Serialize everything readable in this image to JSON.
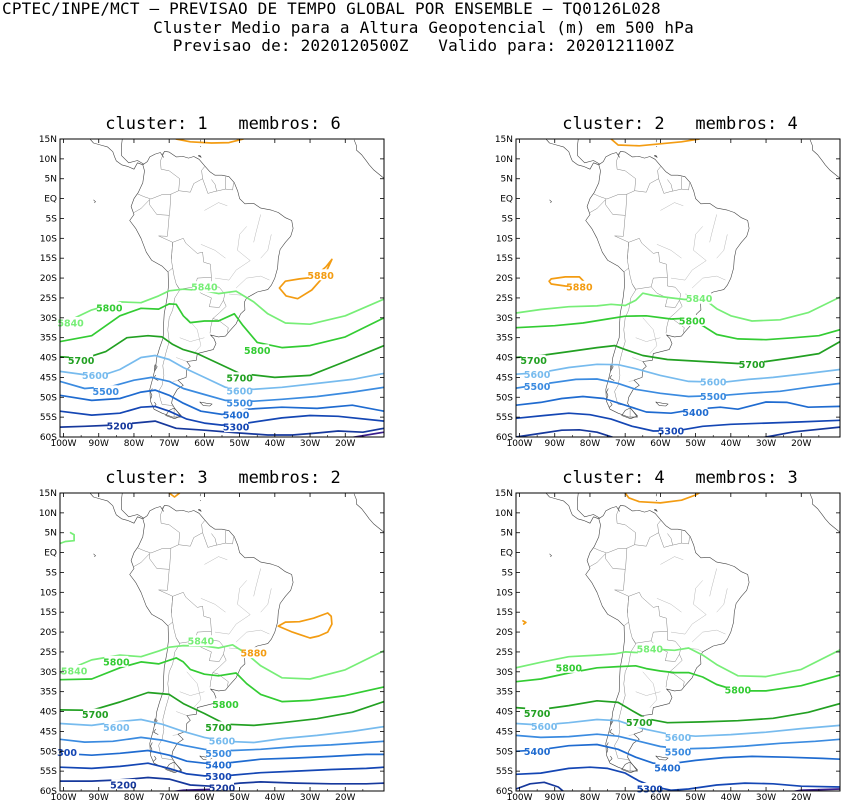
{
  "header": {
    "line1": "CPTEC/INPE/MCT – PREVISAO DE TEMPO GLOBAL POR ENSEMBLE – TQ0126L028",
    "line2": "Cluster Medio para a Altura Geopotencial (m) em 500 hPa",
    "line3": "Previsao de: 2020120500Z   Valido para: 2020121100Z"
  },
  "axes": {
    "lat_labels": [
      "15N",
      "10N",
      "5N",
      "EQ",
      "5S",
      "10S",
      "15S",
      "20S",
      "25S",
      "30S",
      "35S",
      "40S",
      "45S",
      "50S",
      "55S",
      "60S"
    ],
    "lon_labels": [
      "100W",
      "90W",
      "80W",
      "70W",
      "60W",
      "50W",
      "40W",
      "30W",
      "20W"
    ]
  },
  "contour_colors": {
    "5880": "#f39c12",
    "5840": "#77ee77",
    "5800": "#33cc33",
    "5700": "#22a022",
    "5600": "#77bbee",
    "5500": "#3b8be0",
    "5400": "#1f6bd0",
    "5300": "#1446b4",
    "5200": "#16389c",
    "5100": "#3a1e8c"
  },
  "panels": [
    {
      "title": "cluster: 1   membros: 6",
      "labels": [
        {
          "text": "5880",
          "lon": -27,
          "lat": -19.3
        },
        {
          "text": "5840",
          "lon": -60,
          "lat": -22.3
        },
        {
          "text": "5840",
          "lon": -98,
          "lat": -31.3
        },
        {
          "text": "5800",
          "lon": -87,
          "lat": -27.5
        },
        {
          "text": "5800",
          "lon": -45,
          "lat": -38.2
        },
        {
          "text": "5700",
          "lon": -95,
          "lat": -40.8
        },
        {
          "text": "5700",
          "lon": -50,
          "lat": -45.2
        },
        {
          "text": "5600",
          "lon": -91,
          "lat": -44.5
        },
        {
          "text": "5600",
          "lon": -50,
          "lat": -48.4
        },
        {
          "text": "5500",
          "lon": -88,
          "lat": -48.5
        },
        {
          "text": "5500",
          "lon": -50,
          "lat": -51.5
        },
        {
          "text": "5400",
          "lon": -51,
          "lat": -54.5
        },
        {
          "text": "5300",
          "lon": -51,
          "lat": -57.5
        },
        {
          "text": "5200",
          "lon": -84,
          "lat": -57.2
        }
      ]
    },
    {
      "title": "cluster: 2   membros: 4",
      "labels": [
        {
          "text": "5880",
          "lon": -83,
          "lat": -22.2
        },
        {
          "text": "5840",
          "lon": -49,
          "lat": -25.2
        },
        {
          "text": "5800",
          "lon": -51,
          "lat": -30.8
        },
        {
          "text": "5700",
          "lon": -96,
          "lat": -40.8
        },
        {
          "text": "5700",
          "lon": -34,
          "lat": -41.8
        },
        {
          "text": "5600",
          "lon": -95,
          "lat": -44.3
        },
        {
          "text": "5600",
          "lon": -45,
          "lat": -46.2
        },
        {
          "text": "5500",
          "lon": -95,
          "lat": -47.3
        },
        {
          "text": "5500",
          "lon": -45,
          "lat": -49.8
        },
        {
          "text": "5400",
          "lon": -50,
          "lat": -53.8
        },
        {
          "text": "5300",
          "lon": -57,
          "lat": -58.5
        }
      ]
    },
    {
      "title": "cluster: 3   membros: 2",
      "labels": [
        {
          "text": "5880",
          "lon": -46,
          "lat": -25.3
        },
        {
          "text": "5840",
          "lon": -61,
          "lat": -22.3
        },
        {
          "text": "5840",
          "lon": -97,
          "lat": -29.8
        },
        {
          "text": "5800",
          "lon": -85,
          "lat": -27.5
        },
        {
          "text": "5800",
          "lon": -54,
          "lat": -38.2
        },
        {
          "text": "5700",
          "lon": -91,
          "lat": -40.8
        },
        {
          "text": "5700",
          "lon": -56,
          "lat": -44.0
        },
        {
          "text": "5600",
          "lon": -85,
          "lat": -44.0
        },
        {
          "text": "5600",
          "lon": -55,
          "lat": -47.4
        },
        {
          "text": "5500",
          "lon": -56,
          "lat": -50.5
        },
        {
          "text": "5400",
          "lon": -56,
          "lat": -53.5
        },
        {
          "text": "5300",
          "lon": -56,
          "lat": -56.3
        },
        {
          "text": "5200",
          "lon": -55,
          "lat": -59.3
        },
        {
          "text": "5200",
          "lon": -83,
          "lat": -58.5
        },
        {
          "text": "300",
          "lon": -99,
          "lat": -50.3
        }
      ]
    },
    {
      "title": "cluster: 4   membros: 3",
      "labels": [
        {
          "text": "5840",
          "lon": -63,
          "lat": -24.3
        },
        {
          "text": "5800",
          "lon": -86,
          "lat": -29.0
        },
        {
          "text": "5800",
          "lon": -38,
          "lat": -34.6
        },
        {
          "text": "5700",
          "lon": -95,
          "lat": -40.5
        },
        {
          "text": "5700",
          "lon": -66,
          "lat": -42.8
        },
        {
          "text": "5600",
          "lon": -93,
          "lat": -43.8
        },
        {
          "text": "5600",
          "lon": -55,
          "lat": -46.5
        },
        {
          "text": "5500",
          "lon": -55,
          "lat": -50.2
        },
        {
          "text": "5400",
          "lon": -95,
          "lat": -50.0
        },
        {
          "text": "5400",
          "lon": -58,
          "lat": -54.2
        },
        {
          "text": "5300",
          "lon": -63,
          "lat": -59.5
        }
      ]
    }
  ]
}
